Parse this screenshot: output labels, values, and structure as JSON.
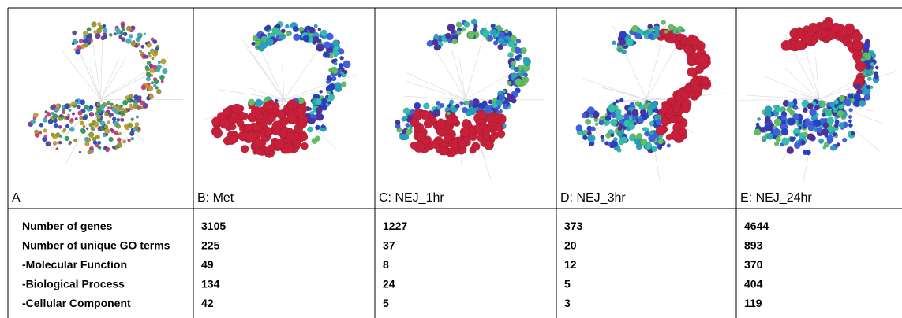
{
  "panels": [
    {
      "label": "A"
    },
    {
      "label": "B: Met"
    },
    {
      "label": "C: NEJ_1hr"
    },
    {
      "label": "D: NEJ_3hr"
    },
    {
      "label": "E: NEJ_24hr"
    }
  ],
  "table": {
    "rows": [
      [
        "Number of genes",
        3105,
        1227,
        373,
        4644
      ],
      [
        "Number of unique GO terms",
        225,
        37,
        20,
        893
      ],
      [
        "-Molecular Function",
        49,
        8,
        12,
        370
      ],
      [
        "-Biological Process",
        134,
        24,
        5,
        404
      ],
      [
        "-Cellular Component",
        42,
        5,
        3,
        119
      ]
    ]
  }
}
